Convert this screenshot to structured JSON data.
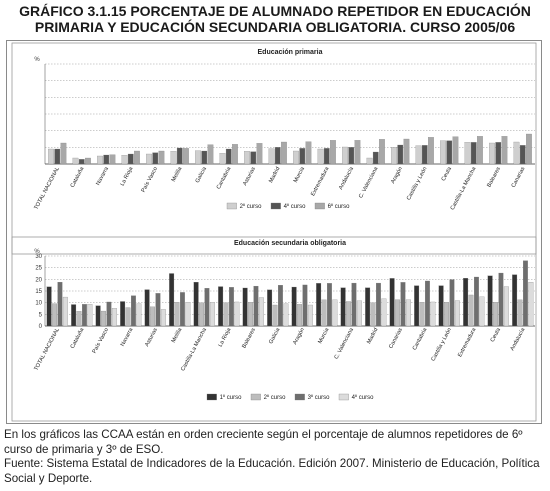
{
  "title_line1": "GRÁFICO 3.1.15 PORCENTAJE DE ALUMNADO REPETIDOR EN EDUCACIÓN",
  "title_line2": "PRIMARIA Y EDUCACIÓN SECUNDARIA OBLIGATORIA. CURSO 2005/06",
  "notes": {
    "order_note": "En los gráficos las CCAA están en orden creciente según el porcentaje de alumnos repetidores de 6º curso de primaria y 3º de ESO.",
    "source": "Fuente: Sistema Estatal de Indicadores de la Educación. Edición 2007. Ministerio de Educación, Política Social y Deporte."
  },
  "chart_data": [
    {
      "type": "bar",
      "title": "Educación primaria",
      "ylabel": "%",
      "ylim": [
        0,
        30
      ],
      "yticks": [],
      "grid": true,
      "legend_position": "bottom",
      "categories": [
        "TOTAL NACIONAL",
        "Cataluña",
        "Navarra",
        "La Rioja",
        "País Vasco",
        "Melilla",
        "Galicia",
        "Cantabria",
        "Asturias",
        "Madrid",
        "Murcia",
        "Extremadura",
        "Andalucía",
        "C. Valenciana",
        "Aragón",
        "Castilla y León",
        "Ceuta",
        "Castilla-La Mancha",
        "Baleares",
        "Canarias"
      ],
      "series": [
        {
          "name": "2º curso",
          "color": "#cfcfcf",
          "values": [
            4.5,
            1.8,
            2.4,
            2.6,
            3.0,
            3.8,
            4.0,
            3.2,
            3.8,
            4.6,
            3.9,
            4.5,
            5.1,
            1.8,
            5.0,
            5.5,
            7.0,
            6.5,
            6.3,
            6.6
          ]
        },
        {
          "name": "4º curso",
          "color": "#555555",
          "values": [
            4.5,
            1.4,
            2.7,
            3.0,
            3.4,
            4.8,
            3.9,
            4.5,
            3.7,
            5.0,
            4.7,
            4.7,
            5.0,
            3.6,
            5.7,
            5.6,
            7.0,
            6.5,
            6.5,
            5.6
          ]
        },
        {
          "name": "6º curso",
          "color": "#a8a8a8",
          "values": [
            6.3,
            1.8,
            2.8,
            3.9,
            3.9,
            4.7,
            5.8,
            5.9,
            6.2,
            6.6,
            6.7,
            7.1,
            7.1,
            7.4,
            7.5,
            8.0,
            8.2,
            8.3,
            8.3,
            9.0
          ]
        }
      ]
    },
    {
      "type": "bar",
      "title": "Educación secundaria obligatoria",
      "ylabel": "%",
      "ylim": [
        0,
        30
      ],
      "yticks": [
        0,
        5,
        10,
        15,
        20,
        25,
        30
      ],
      "grid": true,
      "legend_position": "bottom",
      "categories": [
        "TOTAL NACIONAL",
        "Cataluña",
        "País Vasco",
        "Navarra",
        "Asturias",
        "Melilla",
        "Castilla-La Mancha",
        "La Rioja",
        "Baleares",
        "Galicia",
        "Aragón",
        "Murcia",
        "C. Valenciana",
        "Madrid",
        "Canarias",
        "Cantabria",
        "Castilla y León",
        "Extremadura",
        "Ceuta",
        "Andalucía"
      ],
      "series": [
        {
          "name": "1º curso",
          "color": "#333333",
          "values": [
            16.8,
            9.2,
            8.7,
            10.5,
            15.6,
            22.5,
            18.8,
            16.9,
            16.3,
            15.5,
            16.7,
            18.3,
            16.4,
            16.4,
            20.4,
            17.3,
            17.3,
            20.5,
            21.5,
            22.0
          ]
        },
        {
          "name": "2º curso",
          "color": "#bdbdbd",
          "values": [
            9.6,
            6.3,
            6.4,
            7.9,
            8.2,
            10.2,
            10.0,
            10.0,
            10.2,
            9.0,
            9.3,
            11.2,
            10.5,
            10.0,
            11.3,
            10.2,
            10.2,
            13.3,
            10.2,
            11.2
          ]
        },
        {
          "name": "3º curso",
          "color": "#6e6e6e",
          "values": [
            18.8,
            9.3,
            10.3,
            13.0,
            14.0,
            14.4,
            16.2,
            16.6,
            17.1,
            17.5,
            17.6,
            18.3,
            18.4,
            18.4,
            18.7,
            19.3,
            19.9,
            21.0,
            22.7,
            28.0
          ]
        },
        {
          "name": "4º curso",
          "color": "#dcdcdc",
          "values": [
            12.4,
            9.3,
            7.6,
            9.6,
            7.1,
            10.2,
            10.2,
            10.3,
            12.2,
            9.6,
            9.0,
            11.2,
            10.8,
            11.7,
            11.3,
            10.3,
            10.9,
            12.5,
            16.9,
            18.8
          ]
        }
      ]
    }
  ]
}
